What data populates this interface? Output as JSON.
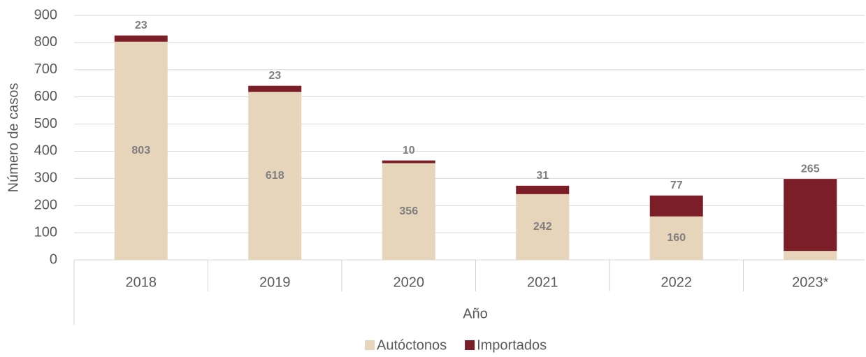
{
  "chart_data": {
    "type": "stacked_bar",
    "categories": [
      "2018",
      "2019",
      "2020",
      "2021",
      "2022",
      "2023*"
    ],
    "series": [
      {
        "name": "Autóctonos",
        "color": "#e6d5ba",
        "values": [
          803,
          618,
          356,
          242,
          160,
          33
        ]
      },
      {
        "name": "Importados",
        "color": "#7b1e28",
        "values": [
          23,
          23,
          10,
          31,
          77,
          265
        ]
      }
    ],
    "ylim": [
      0,
      900
    ],
    "yticks": [
      0,
      100,
      200,
      300,
      400,
      500,
      600,
      700,
      800,
      900
    ],
    "y_label": "Número de casos",
    "x_label": "Año",
    "grid": true,
    "legend": "bottom"
  }
}
